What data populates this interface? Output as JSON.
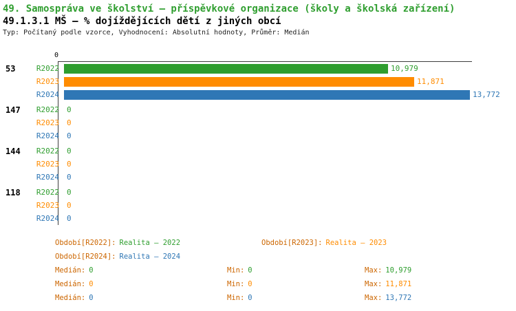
{
  "header": {
    "title1": "49. Samospráva ve školství – příspěvkové organizace (školy a školská zařízení)",
    "meta": "Typ: Počítaný podle vzorce, Vyhodnocení: Absolutní hodnoty, Průměr: Medián"
  },
  "colors": {
    "green": "#2f9e2f",
    "orange": "#ff8c00",
    "blue": "#2f77b5",
    "label": "#cc6600",
    "axis": "#3c3c3c"
  },
  "chart_data": {
    "type": "bar",
    "orientation": "horizontal",
    "title": "49.1.3.1 MŠ – % dojíždějících dětí z jiných obcí",
    "xlim": [
      0,
      14000
    ],
    "x_origin_label": "0",
    "grid": false,
    "legend_position": "bottom",
    "series": [
      {
        "name": "R2022",
        "color": "green",
        "period_label": "Realita – 2022"
      },
      {
        "name": "R2023",
        "color": "orange",
        "period_label": "Realita – 2023"
      },
      {
        "name": "R2024",
        "color": "blue",
        "period_label": "Realita – 2024"
      }
    ],
    "groups": [
      {
        "label": "53",
        "values": [
          10979,
          11871,
          13772
        ],
        "value_labels": [
          "10,979",
          "11,871",
          "13,772"
        ]
      },
      {
        "label": "147",
        "values": [
          0,
          0,
          0
        ],
        "value_labels": [
          "0",
          "0",
          "0"
        ]
      },
      {
        "label": "144",
        "values": [
          0,
          0,
          0
        ],
        "value_labels": [
          "0",
          "0",
          "0"
        ]
      },
      {
        "label": "118",
        "values": [
          0,
          0,
          0
        ],
        "value_labels": [
          "0",
          "0",
          "0"
        ]
      }
    ]
  },
  "legend": {
    "periods": [
      {
        "label": "Období[R2022]:",
        "value": "Realita – 2022",
        "color": "green"
      },
      {
        "label": "Období[R2023]:",
        "value": "Realita – 2023",
        "color": "orange"
      },
      {
        "label": "Období[R2024]:",
        "value": "Realita – 2024",
        "color": "blue"
      }
    ],
    "stats": [
      {
        "median_label": "Medián:",
        "median": "0",
        "min_label": "Min:",
        "min": "0",
        "max_label": "Max:",
        "max": "10,979",
        "color": "green"
      },
      {
        "median_label": "Medián:",
        "median": "0",
        "min_label": "Min:",
        "min": "0",
        "max_label": "Max:",
        "max": "11,871",
        "color": "orange"
      },
      {
        "median_label": "Medián:",
        "median": "0",
        "min_label": "Min:",
        "min": "0",
        "max_label": "Max:",
        "max": "13,772",
        "color": "blue"
      }
    ]
  }
}
